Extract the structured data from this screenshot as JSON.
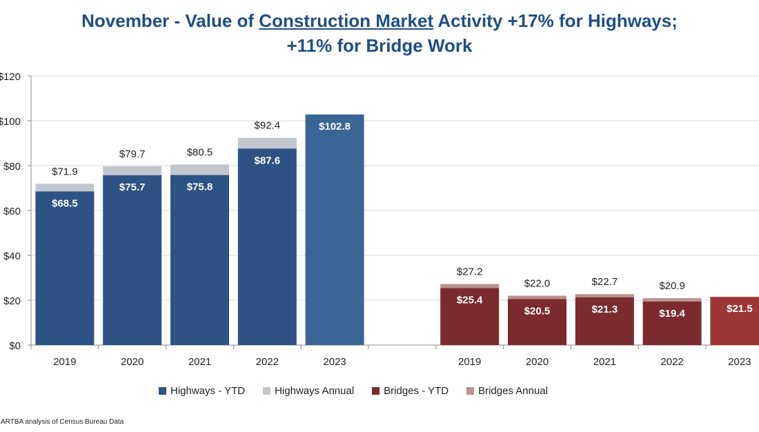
{
  "title": {
    "line1_a": "November - Value of ",
    "line1_u": "Construction Market",
    "line1_b": " Activity +17% for Highways;",
    "line2": "+11% for Bridge Work"
  },
  "source": ": ARTBA analysis of Census Bureau Data",
  "colors": {
    "highways_ytd": "#2e5283",
    "highways_ytd_2023": "#3a6597",
    "highways_annual": "#c2c6cd",
    "bridges_ytd": "#7b2b2d",
    "bridges_ytd_2023": "#9c3735",
    "bridges_annual": "#b8928f"
  },
  "chart_data": {
    "type": "bar",
    "stacked": true,
    "ylim": [
      0,
      120
    ],
    "yticks": [
      0,
      20,
      40,
      60,
      80,
      100,
      120
    ],
    "ytick_labels": [
      "$0",
      "$20",
      "$40",
      "$60",
      "$80",
      "$100",
      "$120"
    ],
    "grid": true,
    "legend_position": "bottom",
    "groups": [
      {
        "name": "Highways",
        "categories": [
          "2019",
          "2020",
          "2021",
          "2022",
          "2023"
        ],
        "ytd": [
          68.5,
          75.7,
          75.8,
          87.6,
          102.8
        ],
        "annual": [
          71.9,
          79.7,
          80.5,
          92.4,
          null
        ],
        "ytd_labels": [
          "$68.5",
          "$75.7",
          "$75.8",
          "$87.6",
          "$102.8"
        ],
        "annual_labels": [
          "$71.9",
          "$79.7",
          "$80.5",
          "$92.4",
          ""
        ]
      },
      {
        "name": "Bridges",
        "categories": [
          "2019",
          "2020",
          "2021",
          "2022",
          "2023"
        ],
        "ytd": [
          25.4,
          20.5,
          21.3,
          19.4,
          21.5
        ],
        "annual": [
          27.2,
          22.0,
          22.7,
          20.9,
          null
        ],
        "ytd_labels": [
          "$25.4",
          "$20.5",
          "$21.3",
          "$19.4",
          "$21.5"
        ],
        "annual_labels": [
          "$27.2",
          "$22.0",
          "$22.7",
          "$20.9",
          ""
        ]
      }
    ],
    "legend": [
      "Highways - YTD",
      "Highways Annual",
      "Bridges - YTD",
      "Bridges Annual"
    ]
  }
}
